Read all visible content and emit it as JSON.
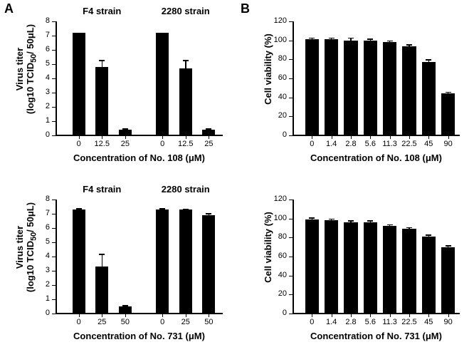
{
  "panel_labels": {
    "A": "A",
    "B": "B"
  },
  "layout": {
    "panel_label_fontsize": 18,
    "panel_label_color": "#000000",
    "axis_fontsize": 11,
    "title_fontsize": 13,
    "bar_color": "#000000",
    "background_color": "#ffffff",
    "axis_color": "#000000",
    "errorbar_width": 1,
    "errorbar_cap": 8
  },
  "charts": [
    {
      "id": "A_top",
      "panel": "A",
      "row": 0,
      "type": "bar",
      "y_label": "Virus titer\n(log10 TCID50/ 50μL)",
      "y_label_html": "Virus titer<br>(log10 TCID<sub>50</sub>/ 50μL)",
      "x_label": "Concentration of No. 108 (μM)",
      "ylim": [
        0,
        8
      ],
      "ytick_step": 1,
      "groups": [
        "F4 strain",
        "2280 strain"
      ],
      "x_categories": [
        "0",
        "12.5",
        "25",
        "0",
        "12.5",
        "25"
      ],
      "values": [
        7.2,
        4.8,
        0.4,
        7.2,
        4.7,
        0.4
      ],
      "errors": [
        0,
        0.5,
        0.1,
        0,
        0.6,
        0.1
      ],
      "group_split": 3,
      "bar_width": 0.55
    },
    {
      "id": "A_bottom",
      "panel": "A",
      "row": 1,
      "type": "bar",
      "y_label": "Virus titer\n(log10 TCID50/ 50μL)",
      "y_label_html": "Virus titer<br>(log10 TCID<sub>50</sub>/ 50μL)",
      "x_label": "Concentration of No. 731 (μM)",
      "ylim": [
        0,
        8
      ],
      "ytick_step": 1,
      "groups": [
        "F4 strain",
        "2280 strain"
      ],
      "x_categories": [
        "0",
        "25",
        "50",
        "0",
        "25",
        "50"
      ],
      "values": [
        7.3,
        3.3,
        0.5,
        7.3,
        7.3,
        6.9
      ],
      "errors": [
        0.1,
        0.9,
        0.1,
        0.1,
        0.05,
        0.15
      ],
      "group_split": 3,
      "bar_width": 0.55
    },
    {
      "id": "B_top",
      "panel": "B",
      "row": 0,
      "type": "bar",
      "y_label": "Cell viability (%)",
      "x_label": "Concentration of No. 108 (μM)",
      "ylim": [
        0,
        120
      ],
      "ytick_step": 20,
      "x_categories": [
        "0",
        "1.4",
        "2.8",
        "5.6",
        "11.3",
        "22.5",
        "45",
        "90"
      ],
      "values": [
        101,
        101,
        100,
        100,
        98,
        94,
        77,
        44
      ],
      "errors": [
        2,
        2,
        3,
        2,
        2,
        2,
        3,
        2
      ],
      "bar_width": 0.7
    },
    {
      "id": "B_bottom",
      "panel": "B",
      "row": 1,
      "type": "bar",
      "y_label": "Cell viability (%)",
      "x_label": "Concentration of No. 731 (μM)",
      "ylim": [
        0,
        120
      ],
      "ytick_step": 20,
      "x_categories": [
        "0",
        "1.4",
        "2.8",
        "5.6",
        "11.3",
        "22.5",
        "45",
        "90"
      ],
      "values": [
        99,
        98,
        96,
        96,
        92,
        89,
        81,
        70
      ],
      "errors": [
        2,
        2,
        2,
        2,
        2,
        2,
        2,
        2
      ],
      "bar_width": 0.7
    }
  ]
}
